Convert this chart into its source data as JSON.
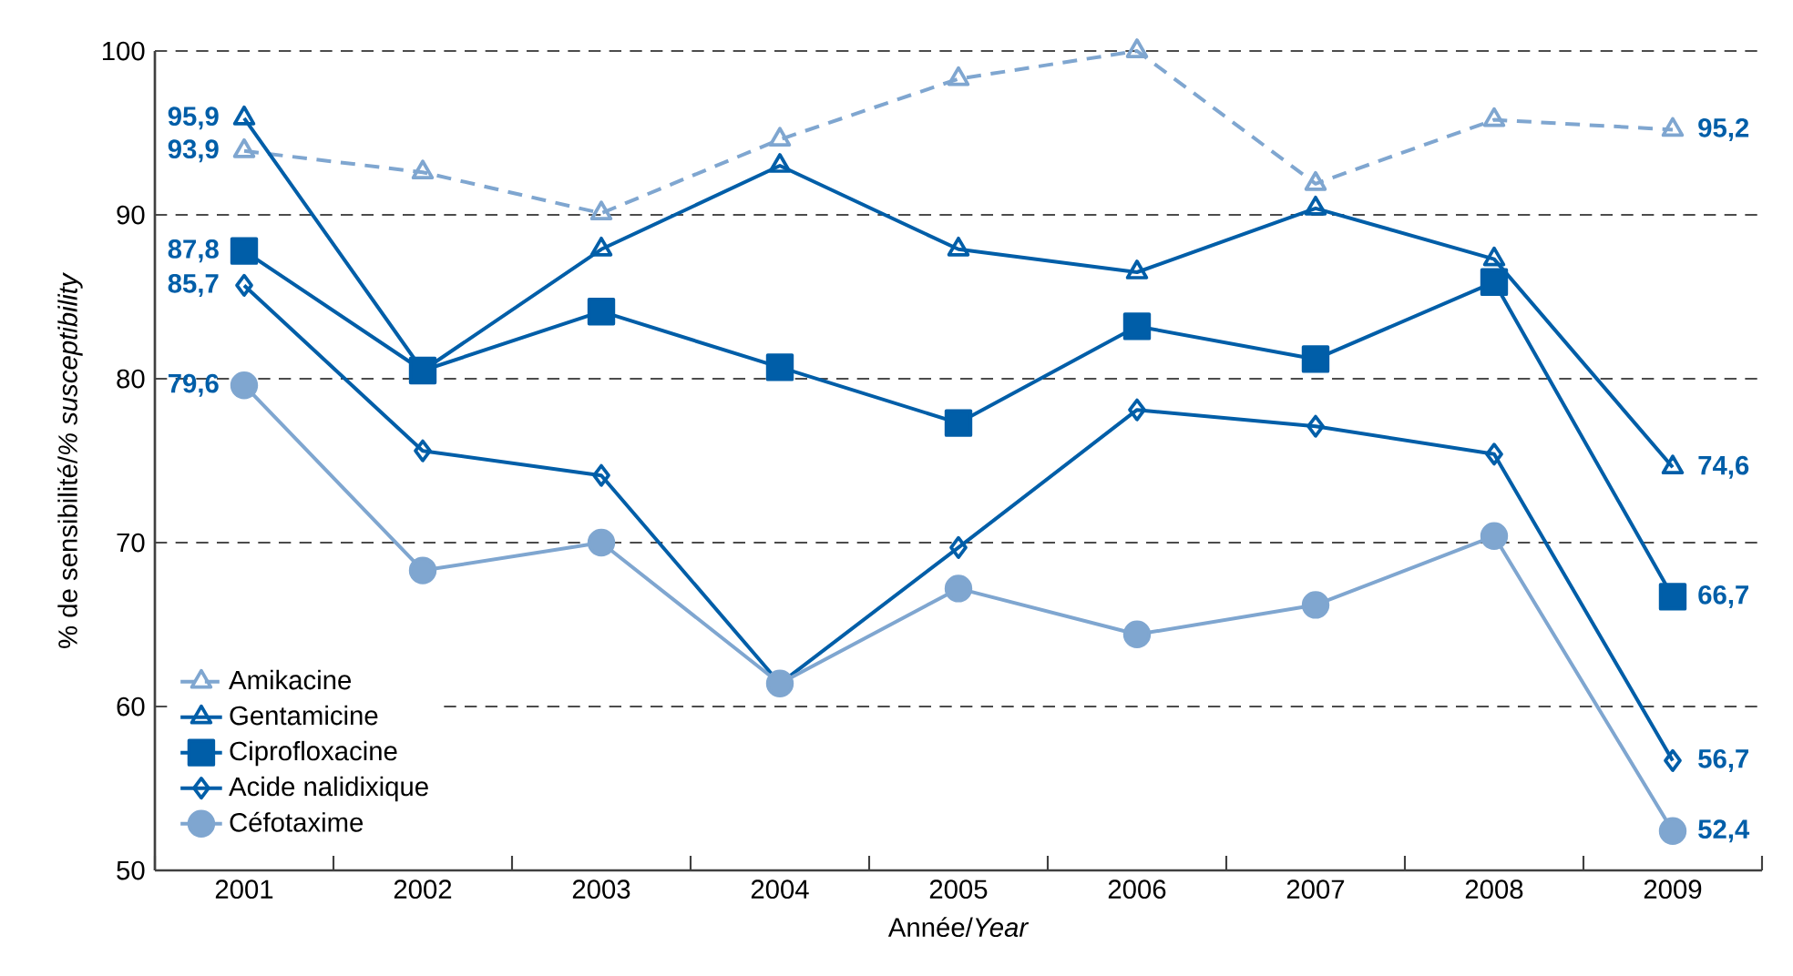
{
  "chart_data": {
    "type": "line",
    "xlabel": "Année/*Year*",
    "ylabel": "% de sensibilité/*% susceptibility*",
    "categories": [
      "2001",
      "2002",
      "2003",
      "2004",
      "2005",
      "2006",
      "2007",
      "2008",
      "2009"
    ],
    "ylim": [
      50,
      100
    ],
    "yticks": [
      50,
      60,
      70,
      80,
      90,
      100
    ],
    "grid": "y",
    "legend": "bottom left",
    "series": [
      {
        "name": "Amikacine",
        "color": "#7fa6d0",
        "marker": "triangle",
        "line_style": "dashed",
        "values": [
          93.9,
          92.6,
          90.1,
          94.6,
          98.3,
          100,
          91.9,
          95.8,
          95.2
        ],
        "value_labels": [
          "93,9",
          null,
          null,
          null,
          null,
          null,
          null,
          null,
          "95,2"
        ]
      },
      {
        "name": "Gentamicine",
        "color": "#005ea8",
        "marker": "triangle",
        "line_style": "solid",
        "values": [
          95.9,
          80.5,
          87.9,
          93.0,
          87.9,
          86.5,
          90.4,
          87.3,
          74.6
        ],
        "value_labels": [
          "95,9",
          null,
          null,
          null,
          null,
          null,
          null,
          null,
          "74,6"
        ]
      },
      {
        "name": "Ciprofloxacine",
        "color": "#005ea8",
        "marker": "square",
        "line_style": "solid",
        "values": [
          87.8,
          80.5,
          84.1,
          80.7,
          77.3,
          83.2,
          81.2,
          85.9,
          66.7
        ],
        "value_labels": [
          "87,8",
          null,
          null,
          null,
          null,
          null,
          null,
          null,
          "66,7"
        ]
      },
      {
        "name": "Acide nalidixique",
        "color": "#005ea8",
        "marker": "diamond",
        "line_style": "solid",
        "values": [
          85.7,
          75.6,
          74.1,
          61.4,
          69.7,
          78.1,
          77.1,
          75.4,
          56.7
        ],
        "value_labels": [
          "85,7",
          null,
          null,
          null,
          null,
          null,
          null,
          null,
          "56,7"
        ]
      },
      {
        "name": "Céfotaxime",
        "color": "#7fa6d0",
        "marker": "circle",
        "line_style": "solid",
        "values": [
          79.6,
          68.3,
          70.0,
          61.4,
          67.2,
          64.4,
          66.2,
          70.4,
          52.4
        ],
        "value_labels": [
          "79,6",
          null,
          null,
          null,
          null,
          null,
          null,
          null,
          "52,4"
        ]
      }
    ]
  }
}
